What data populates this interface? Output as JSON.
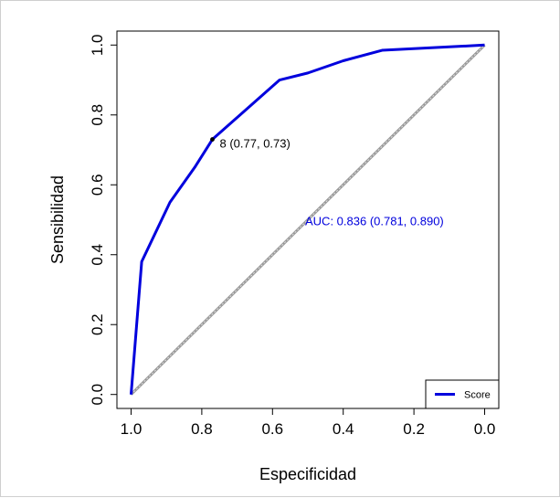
{
  "chart_data": {
    "type": "line",
    "title": "",
    "xlabel": "Especificidad",
    "ylabel": "Sensibilidad",
    "xlim": [
      1.0,
      0.0
    ],
    "ylim": [
      0.0,
      1.0
    ],
    "x_reversed": true,
    "grid": false,
    "x_ticks": [
      "1.0",
      "0.8",
      "0.6",
      "0.4",
      "0.2",
      "0.0"
    ],
    "y_ticks": [
      "0.0",
      "0.2",
      "0.4",
      "0.6",
      "0.8",
      "1.0"
    ],
    "series": [
      {
        "name": "Score",
        "color": "#0000dd",
        "x": [
          1.0,
          0.97,
          0.89,
          0.82,
          0.77,
          0.58,
          0.5,
          0.4,
          0.29,
          0.0
        ],
        "y": [
          0.0,
          0.38,
          0.55,
          0.65,
          0.73,
          0.9,
          0.92,
          0.955,
          0.985,
          1.0
        ]
      }
    ],
    "reference_line": {
      "x": [
        1.0,
        0.0
      ],
      "y": [
        0.0,
        1.0
      ],
      "color": "#9a9a9a"
    },
    "annotations": [
      {
        "text": "8 (0.77, 0.73)",
        "x": 0.77,
        "y": 0.73,
        "color": "#000000"
      },
      {
        "text": "AUC: 0.836 (0.781, 0.890)",
        "x": 0.5,
        "y": 0.5,
        "color": "#0000dd"
      }
    ],
    "legend": {
      "position": "bottom-right",
      "entries": [
        "Score"
      ]
    }
  }
}
